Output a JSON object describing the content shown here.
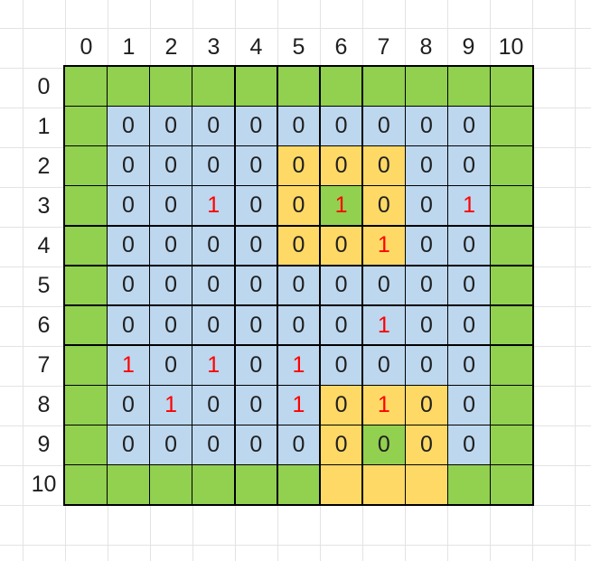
{
  "palette": {
    "green": "#92d050",
    "blue": "#bdd7ee",
    "yellow": "#ffd966",
    "red_text": "#ff0000",
    "dark_text": "#1f1f1f",
    "grid_border": "#000000",
    "sheet_line": "#e3e3e3"
  },
  "grid": {
    "col_headers": [
      "0",
      "1",
      "2",
      "3",
      "4",
      "5",
      "6",
      "7",
      "8",
      "9",
      "10"
    ],
    "row_headers": [
      "0",
      "1",
      "2",
      "3",
      "4",
      "5",
      "6",
      "7",
      "8",
      "9",
      "10"
    ],
    "cell_types": {
      "g": {
        "fill": "green",
        "text": "",
        "color": "dark_text"
      },
      "y": {
        "fill": "yellow",
        "text": "",
        "color": "dark_text"
      },
      "b0": {
        "fill": "blue",
        "text": "0",
        "color": "dark_text"
      },
      "b1": {
        "fill": "blue",
        "text": "1",
        "color": "red_text"
      },
      "y0": {
        "fill": "yellow",
        "text": "0",
        "color": "dark_text"
      },
      "y1": {
        "fill": "yellow",
        "text": "1",
        "color": "red_text"
      },
      "g0": {
        "fill": "green",
        "text": "0",
        "color": "dark_text"
      },
      "g1": {
        "fill": "green",
        "text": "1",
        "color": "red_text"
      }
    },
    "rows": [
      [
        "g",
        "g",
        "g",
        "g",
        "g",
        "g",
        "g",
        "g",
        "g",
        "g",
        "g"
      ],
      [
        "g",
        "b0",
        "b0",
        "b0",
        "b0",
        "b0",
        "b0",
        "b0",
        "b0",
        "b0",
        "g"
      ],
      [
        "g",
        "b0",
        "b0",
        "b0",
        "b0",
        "y0",
        "y0",
        "y0",
        "b0",
        "b0",
        "g"
      ],
      [
        "g",
        "b0",
        "b0",
        "b1",
        "b0",
        "y0",
        "g1",
        "y0",
        "b0",
        "b1",
        "g"
      ],
      [
        "g",
        "b0",
        "b0",
        "b0",
        "b0",
        "y0",
        "y0",
        "y1",
        "b0",
        "b0",
        "g"
      ],
      [
        "g",
        "b0",
        "b0",
        "b0",
        "b0",
        "b0",
        "b0",
        "b0",
        "b0",
        "b0",
        "g"
      ],
      [
        "g",
        "b0",
        "b0",
        "b0",
        "b0",
        "b0",
        "b0",
        "b1",
        "b0",
        "b0",
        "g"
      ],
      [
        "g",
        "b1",
        "b0",
        "b1",
        "b0",
        "b1",
        "b0",
        "b0",
        "b0",
        "b0",
        "g"
      ],
      [
        "g",
        "b0",
        "b1",
        "b0",
        "b0",
        "b1",
        "y0",
        "y1",
        "y0",
        "b0",
        "g"
      ],
      [
        "g",
        "b0",
        "b0",
        "b0",
        "b0",
        "b0",
        "y0",
        "g0",
        "y0",
        "b0",
        "g"
      ],
      [
        "g",
        "g",
        "g",
        "g",
        "g",
        "g",
        "y",
        "y",
        "y",
        "g",
        "g"
      ]
    ]
  }
}
